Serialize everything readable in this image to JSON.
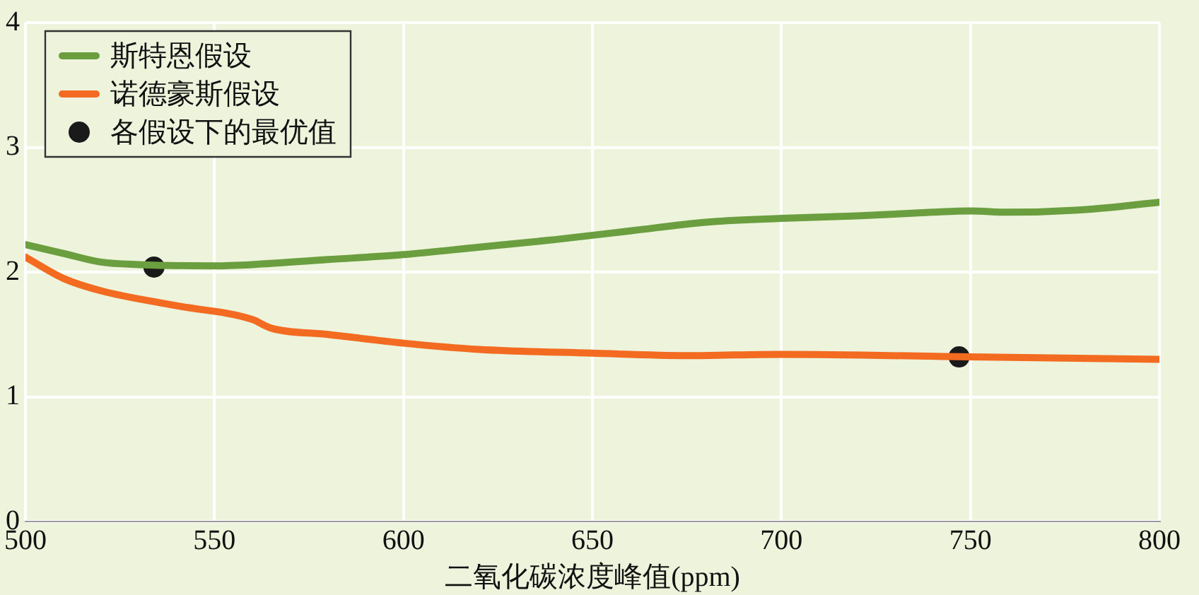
{
  "chart_data": {
    "type": "line",
    "xlabel": "二氧化碳浓度峰值(ppm)",
    "xlim": [
      500,
      800
    ],
    "xticks": [
      500,
      550,
      600,
      650,
      700,
      750,
      800
    ],
    "ylim": [
      0,
      4
    ],
    "yticks": [
      0,
      1,
      2,
      3,
      4
    ],
    "grid": true,
    "legend": "top left",
    "marker": "none",
    "line_style": "solid",
    "series": [
      {
        "name": "斯特恩假设",
        "color": "#6a9e3f",
        "x": [
          500,
          510,
          520,
          530,
          550,
          560,
          580,
          600,
          620,
          640,
          660,
          680,
          700,
          720,
          740,
          750,
          760,
          780,
          800
        ],
        "values": [
          2.22,
          2.15,
          2.08,
          2.06,
          2.05,
          2.06,
          2.1,
          2.14,
          2.2,
          2.26,
          2.33,
          2.4,
          2.43,
          2.45,
          2.48,
          2.49,
          2.48,
          2.5,
          2.56
        ]
      },
      {
        "name": "诺德豪斯假设",
        "color": "#f26b21",
        "x": [
          500,
          510,
          520,
          540,
          560,
          565,
          580,
          600,
          620,
          650,
          675,
          700,
          750,
          800
        ],
        "values": [
          2.12,
          1.95,
          1.85,
          1.73,
          1.62,
          1.55,
          1.5,
          1.43,
          1.38,
          1.35,
          1.33,
          1.34,
          1.32,
          1.3
        ]
      },
      {
        "name": "各假设下的最优值",
        "type": "scatter",
        "marker": "circle",
        "color": "#1a1a1a",
        "x": [
          534,
          747
        ],
        "values": [
          2.04,
          1.32
        ]
      }
    ]
  }
}
